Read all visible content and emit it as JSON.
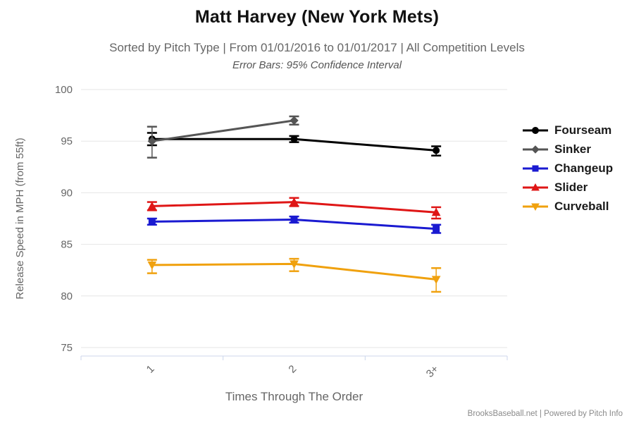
{
  "title": "Matt Harvey (New York Mets)",
  "subtitle": "Sorted by Pitch Type | From 01/01/2016 to 01/01/2017 | All Competition Levels",
  "subtitle2": "Error Bars: 95% Confidence Interval",
  "footer": "BrooksBaseball.net | Powered by Pitch Info",
  "chart_data": {
    "type": "line",
    "title": "Matt Harvey (New York Mets)",
    "xlabel": "Times Through The Order",
    "ylabel": "Release Speed in MPH (from 55ft)",
    "categories": [
      "1",
      "2",
      "3+"
    ],
    "ylim": [
      75,
      100
    ],
    "yticks": [
      75,
      80,
      85,
      90,
      95,
      100
    ],
    "grid": true,
    "legend_position": "right",
    "error_bars": "95% Confidence Interval",
    "colors": {
      "grid": "#e6e6e6",
      "axis": "#ccd6eb",
      "tick_label": "#666666",
      "axis_title": "#666666"
    },
    "series": [
      {
        "name": "Fourseam",
        "color": "#000000",
        "marker": "circle",
        "values": [
          95.2,
          95.2,
          94.1
        ],
        "errors": [
          [
            94.6,
            95.8
          ],
          [
            94.9,
            95.5
          ],
          [
            93.6,
            94.5
          ]
        ]
      },
      {
        "name": "Sinker",
        "color": "#555555",
        "marker": "diamond",
        "values": [
          95.0,
          97.0,
          null
        ],
        "errors": [
          [
            93.4,
            96.4
          ],
          [
            96.6,
            97.4
          ],
          null
        ]
      },
      {
        "name": "Changeup",
        "color": "#1a1ad1",
        "marker": "square",
        "values": [
          87.2,
          87.4,
          86.5
        ],
        "errors": [
          [
            86.9,
            87.5
          ],
          [
            87.1,
            87.7
          ],
          [
            86.1,
            86.9
          ]
        ]
      },
      {
        "name": "Slider",
        "color": "#df1616",
        "marker": "triangle",
        "values": [
          88.7,
          89.1,
          88.1
        ],
        "errors": [
          [
            88.3,
            89.1
          ],
          [
            88.7,
            89.5
          ],
          [
            87.5,
            88.6
          ]
        ]
      },
      {
        "name": "Curveball",
        "color": "#f0a10e",
        "marker": "triangle-down",
        "values": [
          83.0,
          83.1,
          81.6
        ],
        "errors": [
          [
            82.2,
            83.5
          ],
          [
            82.4,
            83.6
          ],
          [
            80.4,
            82.7
          ]
        ]
      }
    ]
  }
}
